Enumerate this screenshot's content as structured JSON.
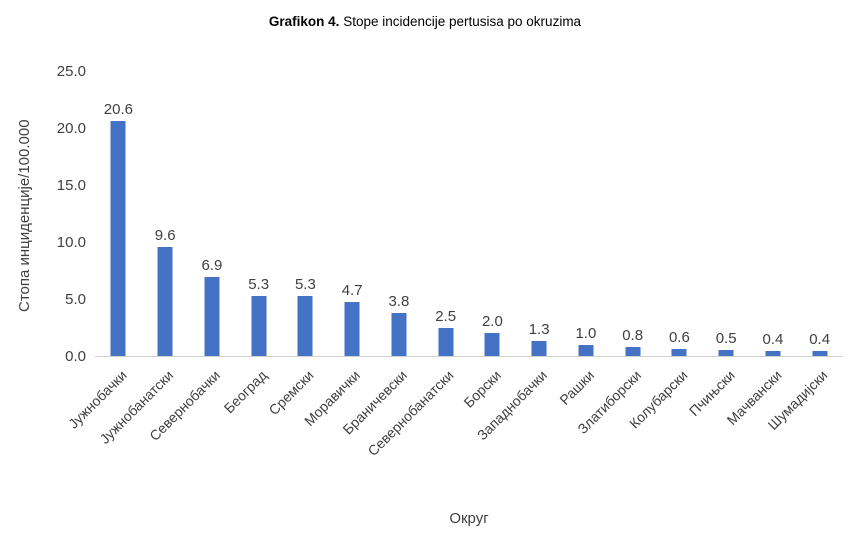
{
  "header": {
    "title_bold": "Grafikon 4.",
    "title_rest": " Stope incidencije pertusisa po okruzima"
  },
  "chart_data": {
    "type": "bar",
    "title": "Grafikon 4. Stope incidencije pertusisa po okruzima",
    "categories": [
      "Јужнобачки",
      "Јужнобанатски",
      "Севернобачки",
      "Београд",
      "Сремски",
      "Моравички",
      "Браничевски",
      "Севернобанатски",
      "Борски",
      "Западнобачки",
      "Рашки",
      "Златиборски",
      "Колубарски",
      "Пчињски",
      "Мачвански",
      "Шумадијски"
    ],
    "values": [
      20.6,
      9.6,
      6.9,
      5.3,
      5.3,
      4.7,
      3.8,
      2.5,
      2.0,
      1.3,
      1.0,
      0.8,
      0.6,
      0.5,
      0.4,
      0.4
    ],
    "data_labels": [
      "20.6",
      "9.6",
      "6.9",
      "5.3",
      "5.3",
      "4.7",
      "3.8",
      "2.5",
      "2.0",
      "1.3",
      "1.0",
      "0.8",
      "0.6",
      "0.5",
      "0.4",
      "0.4"
    ],
    "xlabel": "Округ",
    "ylabel": "Стопа инциденције/100.000",
    "ylim": [
      0,
      25
    ],
    "ytick_labels": [
      "0.0",
      "5.0",
      "10.0",
      "15.0",
      "20.0",
      "25.0"
    ],
    "bar_color": "#4472C4",
    "text_color": "#404040",
    "grid": false,
    "legend": false
  }
}
